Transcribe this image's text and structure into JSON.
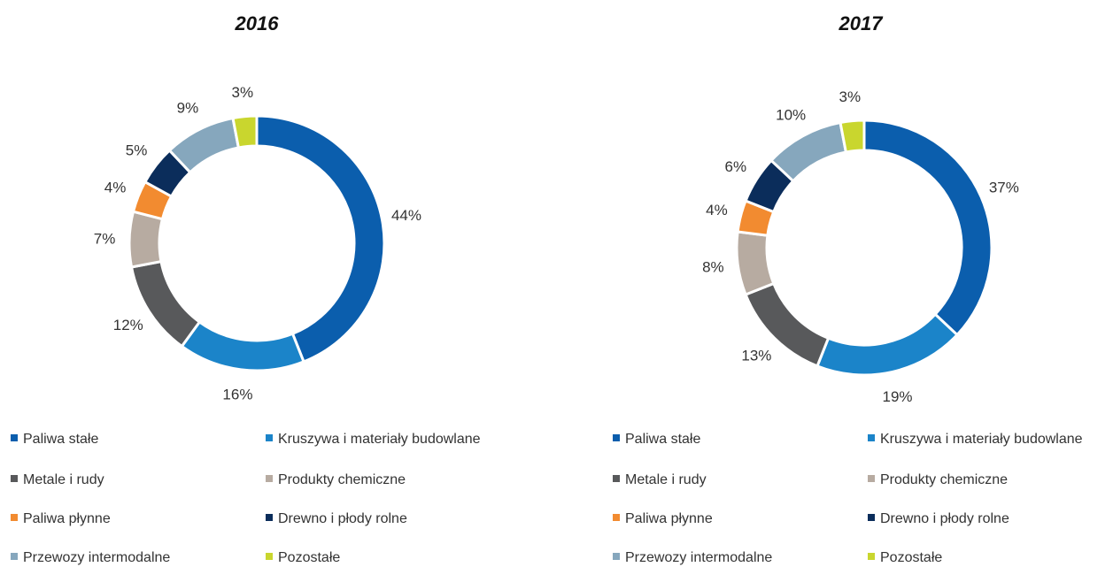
{
  "chart_data": [
    {
      "type": "pie",
      "title": "2016",
      "categories": [
        "Paliwa stałe",
        "Kruszywa i materiały budowlane",
        "Metale i rudy",
        "Produkty chemiczne",
        "Paliwa płynne",
        "Drewno i płody rolne",
        "Przewozy intermodalne",
        "Pozostałe"
      ],
      "values": [
        44,
        16,
        12,
        7,
        4,
        5,
        9,
        3
      ],
      "labels": [
        "44%",
        "16%",
        "12%",
        "7%",
        "4%",
        "5%",
        "9%",
        "3%"
      ],
      "colors": [
        "#0b5ead",
        "#1b84c9",
        "#58595b",
        "#b7aba1",
        "#f28b30",
        "#0b2d5b",
        "#86a7bd",
        "#c9d62e"
      ],
      "legend": "bottom"
    },
    {
      "type": "pie",
      "title": "2017",
      "categories": [
        "Paliwa stałe",
        "Kruszywa i materiały budowlane",
        "Metale i rudy",
        "Produkty chemiczne",
        "Paliwa płynne",
        "Drewno i płody rolne",
        "Przewozy intermodalne",
        "Pozostałe"
      ],
      "values": [
        37,
        19,
        13,
        8,
        4,
        6,
        10,
        3
      ],
      "labels": [
        "37%",
        "19%",
        "13%",
        "8%",
        "4%",
        "6%",
        "10%",
        "3%"
      ],
      "colors": [
        "#0b5ead",
        "#1b84c9",
        "#58595b",
        "#b7aba1",
        "#f28b30",
        "#0b2d5b",
        "#86a7bd",
        "#c9d62e"
      ],
      "legend": "bottom"
    }
  ]
}
